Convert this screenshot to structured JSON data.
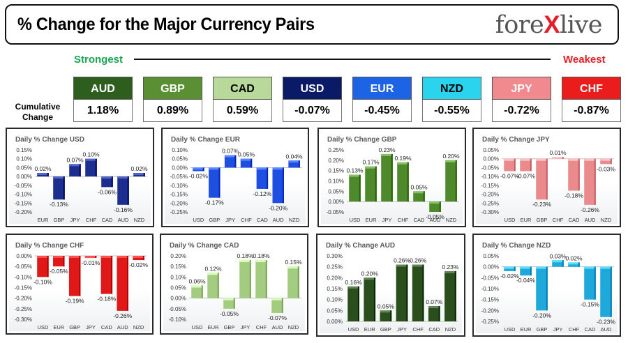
{
  "header": {
    "title": "% Change for the Major Currency Pairs",
    "logo_text_left": "fore",
    "logo_text_x": "X",
    "logo_text_right": "live"
  },
  "legend": {
    "strongest": "Strongest",
    "weakest": "Weakest",
    "cumulative_label": "Cumulative Change"
  },
  "currencies": [
    {
      "code": "AUD",
      "value": "1.18%",
      "bg": "#2e5e1e",
      "fg": "#ffffff"
    },
    {
      "code": "GBP",
      "value": "0.89%",
      "bg": "#5a8f33",
      "fg": "#ffffff"
    },
    {
      "code": "CAD",
      "value": "0.59%",
      "bg": "#b8d99a",
      "fg": "#000000"
    },
    {
      "code": "USD",
      "value": "-0.07%",
      "bg": "#0a1a66",
      "fg": "#ffffff"
    },
    {
      "code": "EUR",
      "value": "-0.45%",
      "bg": "#1c63e6",
      "fg": "#ffffff"
    },
    {
      "code": "NZD",
      "value": "-0.55%",
      "bg": "#2ad3ee",
      "fg": "#000000"
    },
    {
      "code": "JPY",
      "value": "-0.72%",
      "bg": "#f08a8e",
      "fg": "#ffffff"
    },
    {
      "code": "CHF",
      "value": "-0.87%",
      "bg": "#ea1c1c",
      "fg": "#ffffff"
    }
  ],
  "chart_data": [
    {
      "type": "bar",
      "title": "Daily % Change USD",
      "color": "#1c2f8f",
      "categories": [
        "EUR",
        "GBP",
        "JPY",
        "CHF",
        "CAD",
        "AUD",
        "NZD"
      ],
      "values": [
        0.02,
        -0.13,
        0.07,
        0.1,
        -0.06,
        -0.16,
        0.02
      ],
      "labels": [
        "0.02%",
        "-0.13%",
        "0.07%",
        "0.10%",
        "-0.06%",
        "-0.16%",
        "0.02%"
      ],
      "ylim": [
        -0.2,
        0.15
      ],
      "ticks": [
        "-0.20%",
        "-0.15%",
        "-0.10%",
        "-0.05%",
        "0.00%",
        "0.05%",
        "0.10%",
        "0.15%"
      ],
      "tick_values": [
        -0.2,
        -0.15,
        -0.1,
        -0.05,
        0.0,
        0.05,
        0.1,
        0.15
      ]
    },
    {
      "type": "bar",
      "title": "Daily % Change EUR",
      "color": "#1f4fe0",
      "categories": [
        "USD",
        "GBP",
        "JPY",
        "CHF",
        "CAD",
        "AUD",
        "NZD"
      ],
      "values": [
        -0.02,
        -0.17,
        0.07,
        0.05,
        -0.12,
        -0.2,
        0.04
      ],
      "labels": [
        "-0.02%",
        "-0.17%",
        "0.07%",
        "0.05%",
        "-0.12%",
        "-0.20%",
        "0.04%"
      ],
      "ylim": [
        -0.25,
        0.1
      ],
      "ticks": [
        "-0.25%",
        "-0.20%",
        "-0.15%",
        "-0.10%",
        "-0.05%",
        "0.00%",
        "0.05%",
        "0.10%"
      ],
      "tick_values": [
        -0.25,
        -0.2,
        -0.15,
        -0.1,
        -0.05,
        0.0,
        0.05,
        0.1
      ]
    },
    {
      "type": "bar",
      "title": "Daily % Change GBP",
      "color": "#4e8a2c",
      "categories": [
        "USD",
        "EUR",
        "JPY",
        "CHF",
        "CAD",
        "AUD",
        "NZD"
      ],
      "values": [
        0.13,
        0.17,
        0.23,
        0.19,
        0.05,
        -0.05,
        0.2
      ],
      "labels": [
        "0.13%",
        "0.17%",
        "0.23%",
        "0.19%",
        "0.05%",
        "-0.05%",
        "0.20%"
      ],
      "ylim": [
        -0.05,
        0.25
      ],
      "ticks": [
        "-0.05%",
        "0.00%",
        "0.05%",
        "0.10%",
        "0.15%",
        "0.20%",
        "0.25%"
      ],
      "tick_values": [
        -0.05,
        0.0,
        0.05,
        0.1,
        0.15,
        0.2,
        0.25
      ]
    },
    {
      "type": "bar",
      "title": "Daily % Change JPY",
      "color": "#ea8a8c",
      "categories": [
        "USD",
        "EUR",
        "GBP",
        "CHF",
        "CAD",
        "AUD",
        "NZD"
      ],
      "values": [
        -0.07,
        -0.07,
        -0.23,
        0.01,
        -0.18,
        -0.26,
        -0.03
      ],
      "labels": [
        "-0.07%",
        "-0.07%",
        "-0.23%",
        "0.01%",
        "-0.18%",
        "-0.26%",
        "-0.03%"
      ],
      "ylim": [
        -0.3,
        0.05
      ],
      "ticks": [
        "-0.30%",
        "-0.25%",
        "-0.20%",
        "-0.15%",
        "-0.10%",
        "-0.05%",
        "0.00%",
        "0.05%"
      ],
      "tick_values": [
        -0.3,
        -0.25,
        -0.2,
        -0.15,
        -0.1,
        -0.05,
        0.0,
        0.05
      ]
    },
    {
      "type": "bar",
      "title": "Daily % Change CHF",
      "color": "#e01818",
      "categories": [
        "USD",
        "EUR",
        "GBP",
        "JPY",
        "CAD",
        "AUD",
        "NZD"
      ],
      "values": [
        -0.1,
        -0.05,
        -0.19,
        -0.01,
        -0.18,
        -0.26,
        -0.02
      ],
      "labels": [
        "-0.10%",
        "-0.05%",
        "-0.19%",
        "-0.01%",
        "-0.18%",
        "-0.26%",
        "-0.02%"
      ],
      "ylim": [
        -0.3,
        0.0
      ],
      "ticks": [
        "-0.30%",
        "-0.25%",
        "-0.20%",
        "-0.15%",
        "-0.10%",
        "-0.05%",
        "0.00%"
      ],
      "tick_values": [
        -0.3,
        -0.25,
        -0.2,
        -0.15,
        -0.1,
        -0.05,
        0.0
      ]
    },
    {
      "type": "bar",
      "title": "Daily % Change CAD",
      "color": "#a3cc80",
      "categories": [
        "USD",
        "EUR",
        "GBP",
        "JPY",
        "CHF",
        "AUD",
        "NZD"
      ],
      "values": [
        0.06,
        0.12,
        -0.05,
        0.18,
        0.18,
        -0.07,
        0.15
      ],
      "labels": [
        "0.06%",
        "0.12%",
        "-0.05%",
        "0.18%",
        "0.18%",
        "-0.07%",
        "0.15%"
      ],
      "ylim": [
        -0.1,
        0.2
      ],
      "ticks": [
        "-0.10%",
        "-0.05%",
        "0.00%",
        "0.05%",
        "0.10%",
        "0.15%",
        "0.20%"
      ],
      "tick_values": [
        -0.1,
        -0.05,
        0.0,
        0.05,
        0.1,
        0.15,
        0.2
      ]
    },
    {
      "type": "bar",
      "title": "Daily % Change AUD",
      "color": "#2b4f1c",
      "categories": [
        "USD",
        "EUR",
        "GBP",
        "JPY",
        "CHF",
        "CAD",
        "NZD"
      ],
      "values": [
        0.16,
        0.2,
        0.05,
        0.26,
        0.26,
        0.07,
        0.23
      ],
      "labels": [
        "0.16%",
        "0.20%",
        "0.05%",
        "0.26%",
        "0.26%",
        "0.07%",
        "0.23%"
      ],
      "ylim": [
        0.0,
        0.3
      ],
      "ticks": [
        "0.00%",
        "0.05%",
        "0.10%",
        "0.15%",
        "0.20%",
        "0.25%",
        "0.30%"
      ],
      "tick_values": [
        0.0,
        0.05,
        0.1,
        0.15,
        0.2,
        0.25,
        0.3
      ]
    },
    {
      "type": "bar",
      "title": "Daily % Change NZD",
      "color": "#1fa8da",
      "categories": [
        "USD",
        "EUR",
        "GBP",
        "JPY",
        "CHF",
        "CAD",
        "AUD"
      ],
      "values": [
        -0.02,
        -0.04,
        -0.2,
        0.03,
        0.02,
        -0.15,
        -0.23
      ],
      "labels": [
        "-0.02%",
        "-0.04%",
        "-0.20%",
        "0.03%",
        "0.02%",
        "-0.15%",
        "-0.23%"
      ],
      "ylim": [
        -0.25,
        0.05
      ],
      "ticks": [
        "-0.25%",
        "-0.20%",
        "-0.15%",
        "-0.10%",
        "-0.05%",
        "0.00%",
        "0.05%"
      ],
      "tick_values": [
        -0.25,
        -0.2,
        -0.15,
        -0.1,
        -0.05,
        0.0,
        0.05
      ]
    }
  ]
}
